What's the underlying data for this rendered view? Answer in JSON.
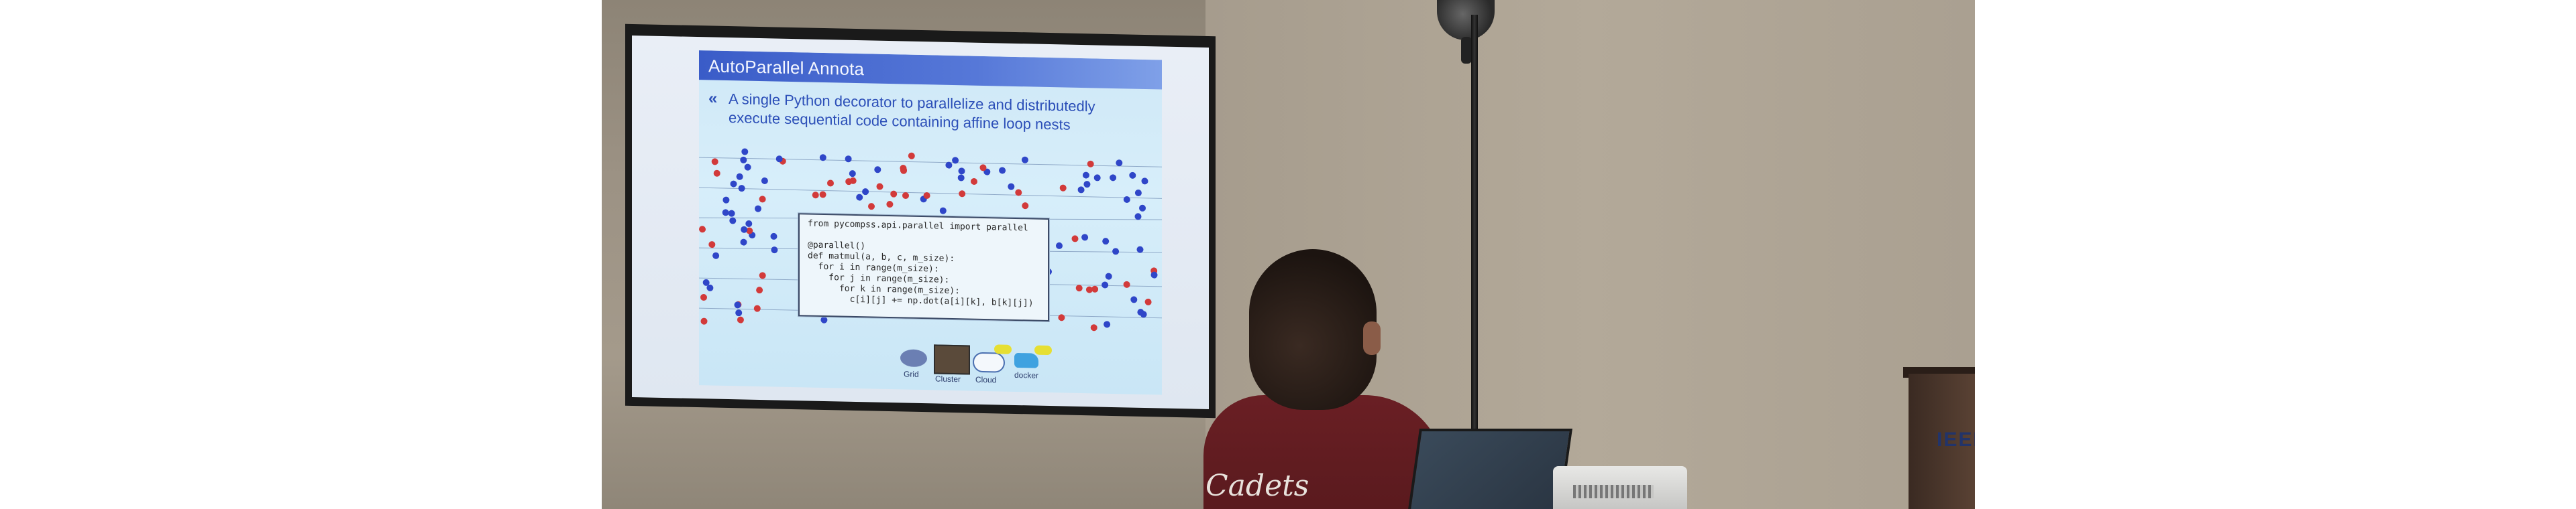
{
  "slide": {
    "title": "AutoParallel Annota",
    "bullet_line1": "A single Python decorator to parallelize and distributedly",
    "bullet_line2": "execute sequential code containing affine loop nests",
    "code": [
      "from pycompss.api.parallel import parallel",
      "",
      "@parallel()",
      "def matmul(a, b, c, m_size):",
      "  for i in range(m_size):",
      "    for j in range(m_size):",
      "      for k in range(m_size):",
      "        c[i][j] += np.dot(a[i][k], b[k][j])"
    ],
    "targets": {
      "grid": "Grid",
      "cluster": "Cluster",
      "cloud": "Cloud",
      "docker": "docker"
    }
  },
  "audience": {
    "jacket_text": "Cadets"
  },
  "podium": {
    "logo": "IEEE"
  },
  "colors": {
    "slide_header": "#3a5cc8",
    "dot_red": "#d23a3a",
    "dot_blue": "#2f46c8"
  }
}
